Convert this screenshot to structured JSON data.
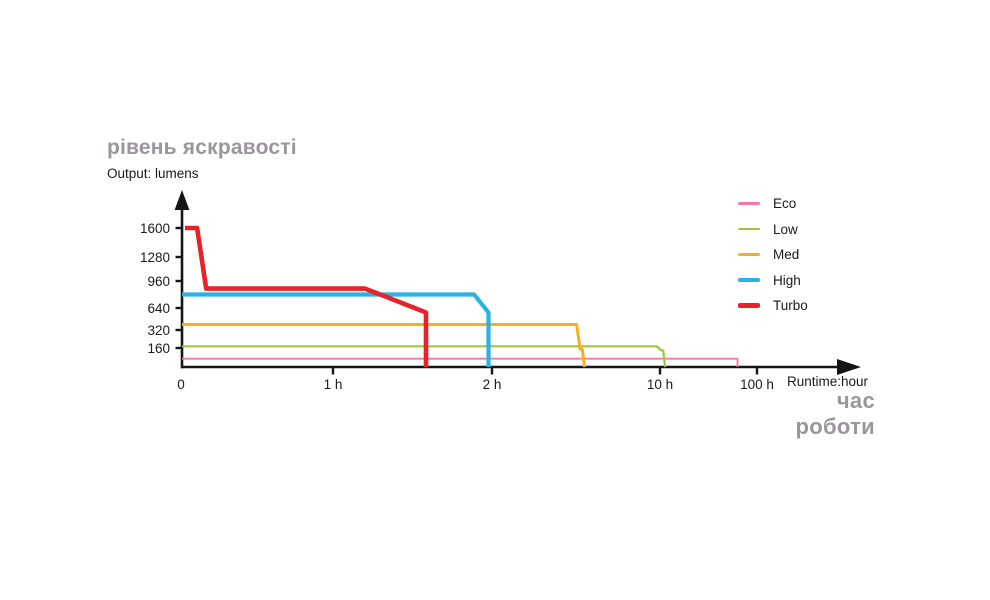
{
  "header": {
    "title_uk": "рівень яскравості",
    "subtitle": "Output: lumens"
  },
  "footer": {
    "xaxis_label_en": "Runtime:hour",
    "xaxis_label_uk": "час роботи"
  },
  "colors": {
    "eco": "#f377a9",
    "low": "#9cc83e",
    "med": "#f7b01c",
    "high": "#29b2e3",
    "turbo": "#e8222b",
    "axis": "#151515",
    "muted_text": "#9a969b",
    "text": "#1a1a1a"
  },
  "chart_data": {
    "type": "line",
    "title": "рівень яскравості (Output: lumens)",
    "xlabel": "Runtime:hour (час роботи)",
    "ylabel": "Output: lumens",
    "x_scale": "pseudo-log (0, 1h, 2h, 10h, 100h)",
    "grid": false,
    "legend_position": "right",
    "x_ticks": [
      {
        "label": "0",
        "hours": 0
      },
      {
        "label": "1 h",
        "hours": 1
      },
      {
        "label": "2 h",
        "hours": 2
      },
      {
        "label": "10 h",
        "hours": 10
      },
      {
        "label": "100 h",
        "hours": 100
      }
    ],
    "y_ticks": [
      {
        "label": "1600",
        "lumens": 1600
      },
      {
        "label": "1280",
        "lumens": 1280
      },
      {
        "label": "960",
        "lumens": 960
      },
      {
        "label": "640",
        "lumens": 640
      },
      {
        "label": "320",
        "lumens": 320
      },
      {
        "label": "160",
        "lumens": 160
      }
    ],
    "series": [
      {
        "name": "Eco",
        "color": "#f377a9",
        "line_width": 1.8,
        "legend_width": 2.2,
        "points_hours_lumens": [
          [
            0,
            70
          ],
          [
            63,
            70
          ],
          [
            63,
            0
          ]
        ]
      },
      {
        "name": "Low",
        "color": "#9cc83e",
        "line_width": 2.2,
        "legend_width": 2.8,
        "points_hours_lumens": [
          [
            0,
            175
          ],
          [
            9.7,
            175
          ],
          [
            10.3,
            140
          ],
          [
            10.8,
            140
          ],
          [
            11.3,
            0
          ]
        ]
      },
      {
        "name": "Med",
        "color": "#f7b01c",
        "line_width": 3.0,
        "legend_width": 3.6,
        "points_hours_lumens": [
          [
            0,
            400
          ],
          [
            4.5,
            400
          ],
          [
            4.65,
            150
          ],
          [
            4.75,
            150
          ],
          [
            4.85,
            0
          ]
        ]
      },
      {
        "name": "High",
        "color": "#29b2e3",
        "line_width": 4.2,
        "legend_width": 4.6,
        "points_hours_lumens": [
          [
            0,
            800
          ],
          [
            1.85,
            800
          ],
          [
            1.97,
            575
          ],
          [
            1.97,
            0
          ]
        ]
      },
      {
        "name": "Turbo",
        "color": "#e8222b",
        "line_width": 4.6,
        "legend_width": 5.4,
        "points_hours_lumens": [
          [
            0.02,
            1600
          ],
          [
            0.1,
            1600
          ],
          [
            0.16,
            870
          ],
          [
            1.15,
            870
          ],
          [
            1.5,
            575
          ],
          [
            1.5,
            0
          ]
        ]
      }
    ]
  }
}
